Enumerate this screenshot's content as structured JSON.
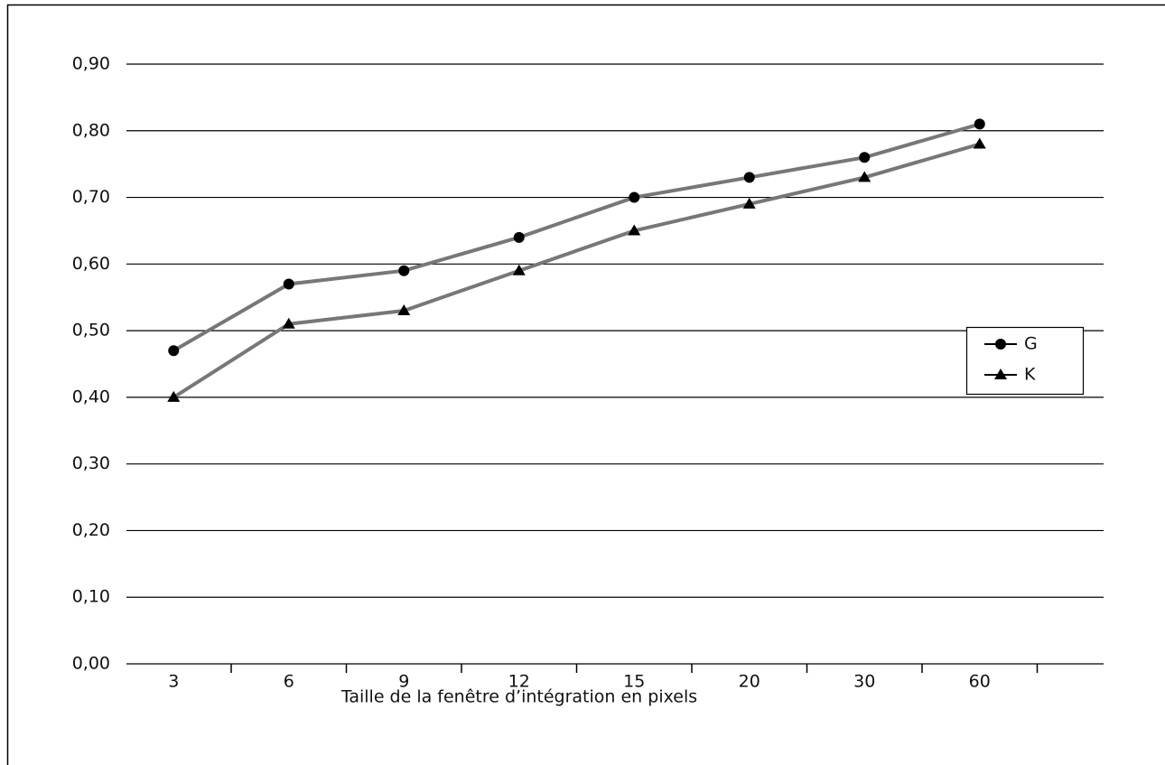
{
  "chart_data": {
    "type": "line",
    "x_label": "Taille de la fenêtre d’intégration en pixels",
    "categories": [
      "3",
      "6",
      "9",
      "12",
      "15",
      "20",
      "30",
      "60"
    ],
    "series": [
      {
        "name": "G",
        "color": "#777777",
        "marker": "circle",
        "marker_color": "#000000",
        "values": [
          0.47,
          0.57,
          0.59,
          0.64,
          0.7,
          0.73,
          0.76,
          0.81
        ]
      },
      {
        "name": "K",
        "color": "#777777",
        "marker": "triangle",
        "marker_color": "#000000",
        "values": [
          0.4,
          0.51,
          0.53,
          0.59,
          0.65,
          0.69,
          0.73,
          0.78
        ]
      }
    ],
    "ylim": [
      0,
      0.9
    ],
    "yticks": [
      {
        "value": 0,
        "label": "0,00"
      },
      {
        "value": 0.1,
        "label": "0,10"
      },
      {
        "value": 0.2,
        "label": "0,20"
      },
      {
        "value": 0.3,
        "label": "0,30"
      },
      {
        "value": 0.4,
        "label": "0,40"
      },
      {
        "value": 0.5,
        "label": "0,50"
      },
      {
        "value": 0.6,
        "label": "0,60"
      },
      {
        "value": 0.7,
        "label": "0,70"
      },
      {
        "value": 0.8,
        "label": "0,80"
      },
      {
        "value": 0.9,
        "label": "0,90"
      }
    ],
    "grid": true,
    "legend": "right"
  }
}
